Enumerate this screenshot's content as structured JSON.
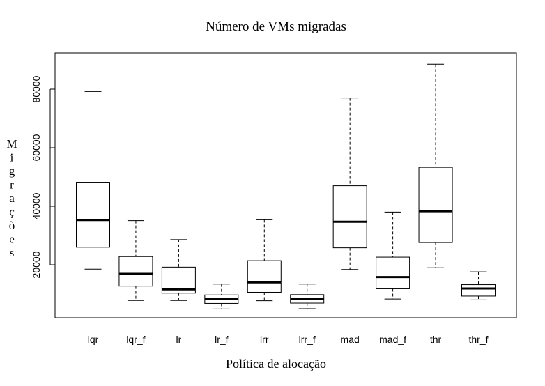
{
  "chart_data": {
    "type": "boxplot",
    "title": "Número de VMs migradas",
    "xlabel": "Política de alocação",
    "ylabel": "Migrações",
    "ylim": [
      0,
      90000
    ],
    "yticks": [
      20000,
      40000,
      60000,
      80000
    ],
    "grid": false,
    "categories": [
      "lqr",
      "lqr_f",
      "lr",
      "lr_f",
      "lrr",
      "lrr_f",
      "mad",
      "mad_f",
      "thr",
      "thr_f"
    ],
    "boxes": [
      {
        "name": "lqr",
        "min": 18500,
        "q1": 26000,
        "median": 35300,
        "q3": 48200,
        "max": 79200
      },
      {
        "name": "lqr_f",
        "min": 7800,
        "q1": 12700,
        "median": 16900,
        "q3": 22800,
        "max": 35100
      },
      {
        "name": "lr",
        "min": 7800,
        "q1": 10300,
        "median": 11600,
        "q3": 19200,
        "max": 28600
      },
      {
        "name": "lr_f",
        "min": 4900,
        "q1": 6800,
        "median": 8300,
        "q3": 9700,
        "max": 13400
      },
      {
        "name": "lrr",
        "min": 7700,
        "q1": 10600,
        "median": 14000,
        "q3": 21400,
        "max": 35400
      },
      {
        "name": "lrr_f",
        "min": 5000,
        "q1": 6900,
        "median": 8400,
        "q3": 9800,
        "max": 13400
      },
      {
        "name": "mad",
        "min": 18400,
        "q1": 25800,
        "median": 34700,
        "q3": 47000,
        "max": 77000
      },
      {
        "name": "mad_f",
        "min": 8300,
        "q1": 11800,
        "median": 15800,
        "q3": 22600,
        "max": 38000
      },
      {
        "name": "thr",
        "min": 19000,
        "q1": 27600,
        "median": 38300,
        "q3": 53300,
        "max": 88500
      },
      {
        "name": "thr_f",
        "min": 8000,
        "q1": 9300,
        "median": 11900,
        "q3": 13200,
        "max": 17600
      }
    ]
  }
}
